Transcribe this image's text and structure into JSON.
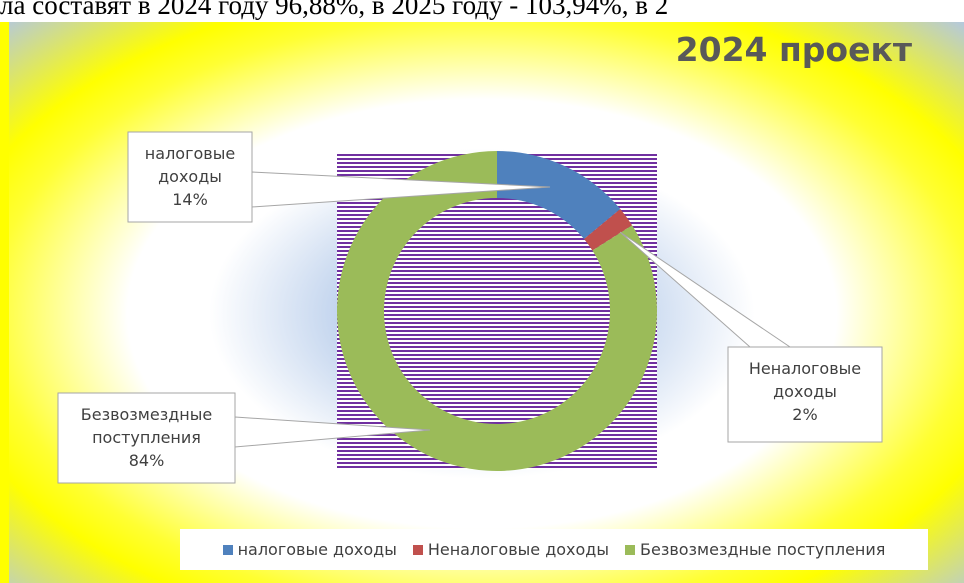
{
  "document_text": "ла составят в 2024 году 96,88%, в 2025 году - 103,94%, в 2",
  "chart_data": {
    "type": "doughnut",
    "title": "2024 проект",
    "categories": [
      "налоговые доходы",
      "Неналоговые доходы",
      "Безвозмездные поступления"
    ],
    "values": [
      14,
      2,
      84
    ],
    "value_labels": [
      "14%",
      "2%",
      "84%"
    ],
    "colors": [
      "#4f81bd",
      "#c0504d",
      "#9bbb59"
    ],
    "legend": "bottom"
  }
}
